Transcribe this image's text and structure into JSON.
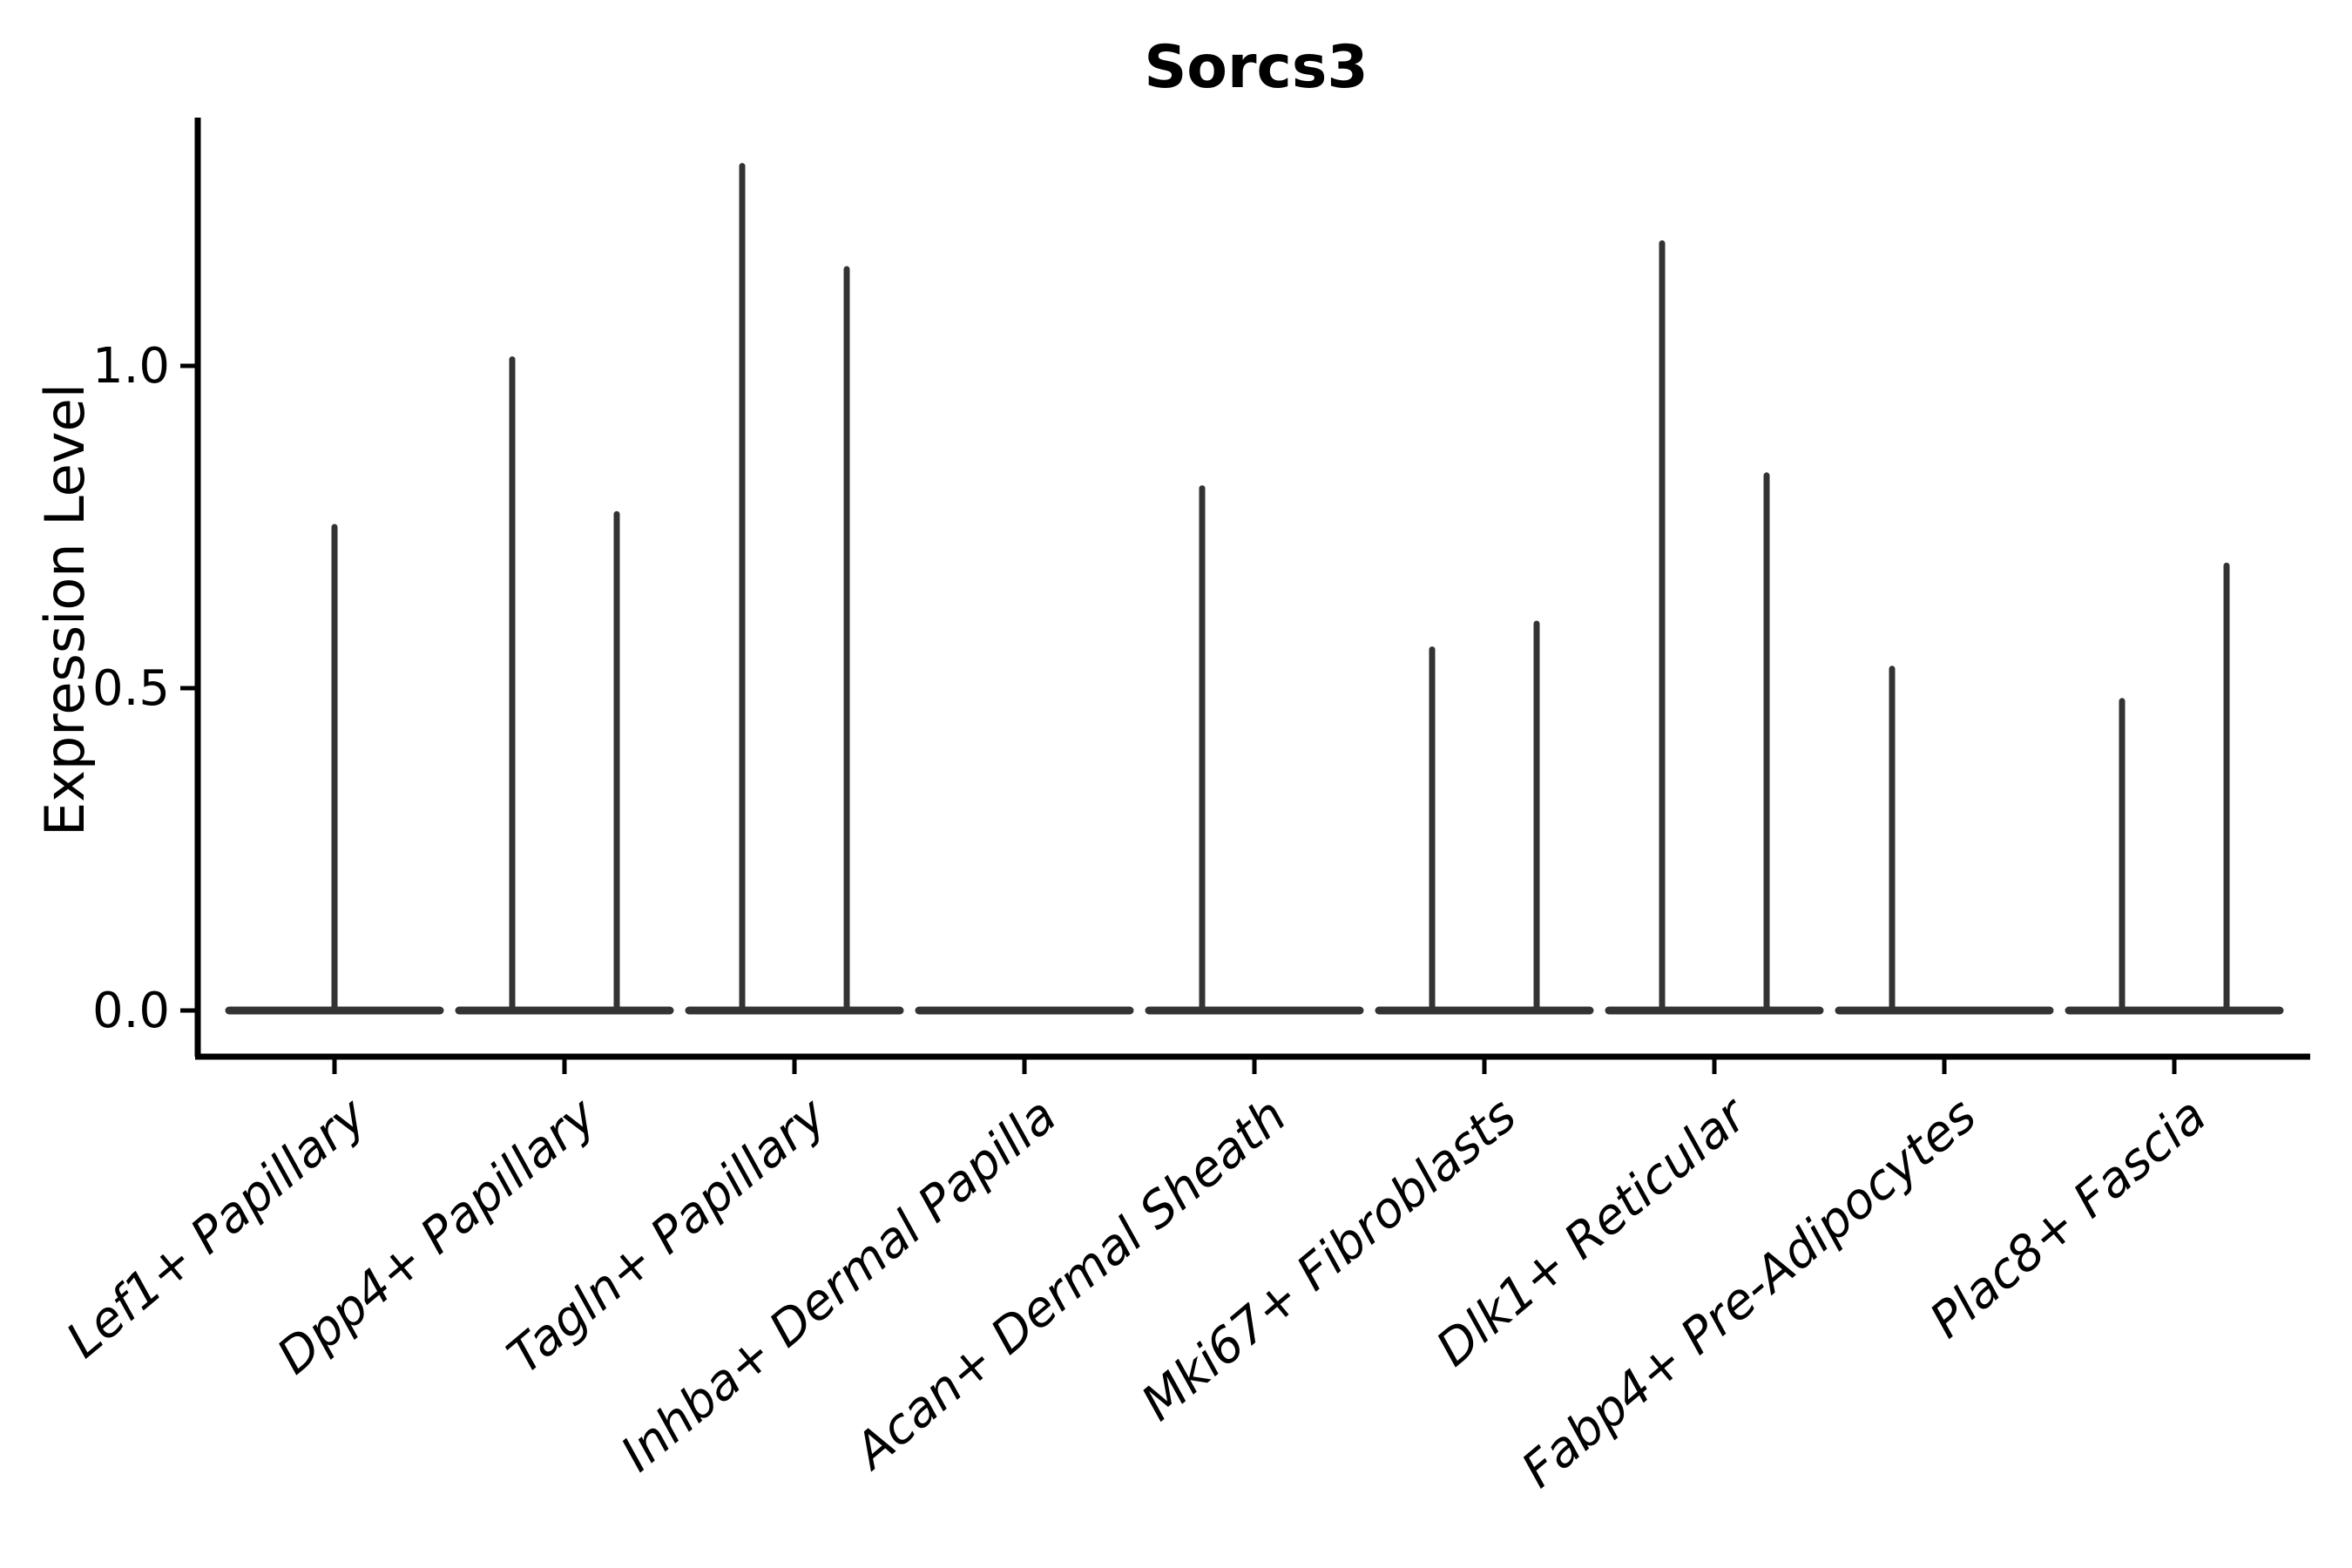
{
  "chart_data": {
    "type": "violin",
    "title": "Sorcs3",
    "xlabel": "",
    "ylabel": "Expression Level",
    "yticks": [
      {
        "value": 0.0,
        "label": "0.0"
      },
      {
        "value": 0.5,
        "label": "0.5"
      },
      {
        "value": 1.0,
        "label": "1.0"
      }
    ],
    "ylim": [
      -0.072,
      1.39
    ],
    "grid": false,
    "legend": "none",
    "line_color": "#333333",
    "axis_color": "#000000",
    "categories": [
      "Lef1+ Papillary",
      "Dpp4+ Papillary",
      "Tagln+ Papillary",
      "Inhba+ Dermal Papilla",
      "Acan+ Dermal Sheath",
      "Mki67+ Fibroblasts",
      "Dlk1+ Reticular",
      "Fabp4+ Pre-Adipocytes",
      "Plac8+ Fascia"
    ],
    "violins": [
      {
        "category": "Lef1+ Papillary",
        "baseline_value": 0.0,
        "spikes": [
          {
            "pos": "center",
            "max": 0.75
          }
        ]
      },
      {
        "category": "Dpp4+ Papillary",
        "baseline_value": 0.0,
        "spikes": [
          {
            "pos": "left",
            "max": 1.01
          },
          {
            "pos": "right",
            "max": 0.77
          }
        ]
      },
      {
        "category": "Tagln+ Papillary",
        "baseline_value": 0.0,
        "spikes": [
          {
            "pos": "left",
            "max": 1.31
          },
          {
            "pos": "right",
            "max": 1.15
          }
        ]
      },
      {
        "category": "Inhba+ Dermal Papilla",
        "baseline_value": 0.0,
        "spikes": []
      },
      {
        "category": "Acan+ Dermal Sheath",
        "baseline_value": 0.0,
        "spikes": [
          {
            "pos": "left",
            "max": 0.81
          }
        ]
      },
      {
        "category": "Mki67+ Fibroblasts",
        "baseline_value": 0.0,
        "spikes": [
          {
            "pos": "left",
            "max": 0.56
          },
          {
            "pos": "right",
            "max": 0.6
          }
        ]
      },
      {
        "category": "Dlk1+ Reticular",
        "baseline_value": 0.0,
        "spikes": [
          {
            "pos": "left",
            "max": 1.19
          },
          {
            "pos": "right",
            "max": 0.83
          }
        ]
      },
      {
        "category": "Fabp4+ Pre-Adipocytes",
        "baseline_value": 0.0,
        "spikes": [
          {
            "pos": "left",
            "max": 0.53
          }
        ]
      },
      {
        "category": "Plac8+ Fascia",
        "baseline_value": 0.0,
        "spikes": [
          {
            "pos": "left",
            "max": 0.48
          },
          {
            "pos": "right",
            "max": 0.69
          }
        ]
      }
    ]
  }
}
